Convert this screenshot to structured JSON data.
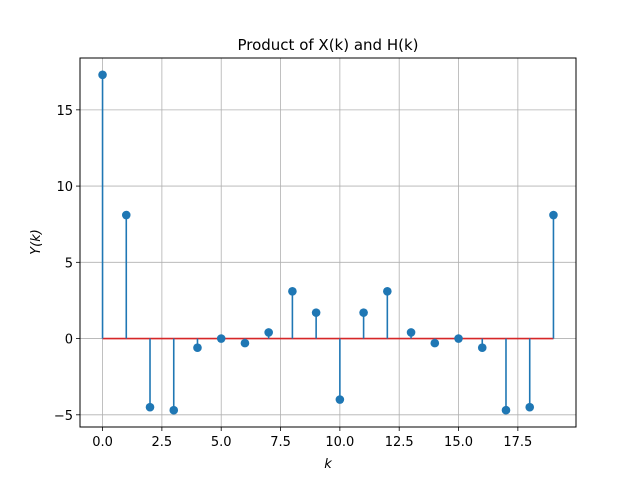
{
  "chart_data": {
    "type": "stem",
    "title": "Product of X(k) and H(k)",
    "xlabel": "k",
    "ylabel": "Y(k)",
    "xlim": [
      -0.95,
      19.95
    ],
    "ylim": [
      -5.8,
      18.4
    ],
    "xticks": [
      0.0,
      2.5,
      5.0,
      7.5,
      10.0,
      12.5,
      15.0,
      17.5
    ],
    "xtick_labels": [
      "0.0",
      "2.5",
      "5.0",
      "7.5",
      "10.0",
      "12.5",
      "15.0",
      "17.5"
    ],
    "yticks": [
      -5,
      0,
      5,
      10,
      15
    ],
    "ytick_labels": [
      "−5",
      "0",
      "5",
      "10",
      "15"
    ],
    "grid": true,
    "baseline": 0,
    "x": [
      0,
      1,
      2,
      3,
      4,
      5,
      6,
      7,
      8,
      9,
      10,
      11,
      12,
      13,
      14,
      15,
      16,
      17,
      18,
      19
    ],
    "values": [
      17.3,
      8.1,
      -4.5,
      -4.7,
      -0.6,
      0.0,
      -0.3,
      0.4,
      3.1,
      1.7,
      -4.0,
      1.7,
      3.1,
      0.4,
      -0.3,
      0.0,
      -0.6,
      -4.7,
      -4.5,
      8.1
    ],
    "colors": {
      "stem": "#1f77b4",
      "marker": "#1f77b4",
      "baseline": "#d62728",
      "grid": "#b0b0b0"
    }
  }
}
